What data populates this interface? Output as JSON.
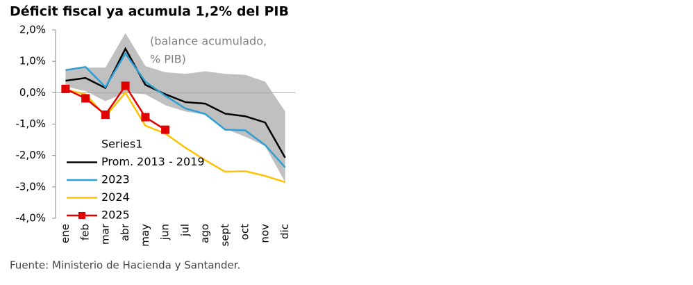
{
  "chart_data": {
    "type": "line",
    "title": "Déficit fiscal ya acumula 1,2% del PIB",
    "annotation": [
      "(balance acumulado,",
      "% PIB)"
    ],
    "source": "Fuente: Ministerio de Hacienda y Santander.",
    "categories": [
      "ene",
      "feb",
      "mar",
      "abr",
      "may",
      "jun",
      "jul",
      "ago",
      "sept",
      "oct",
      "nov",
      "dic"
    ],
    "band": {
      "name": "Series1",
      "color": "#c0c0c0",
      "high": [
        0.73,
        0.8,
        0.8,
        1.9,
        0.85,
        0.65,
        0.6,
        0.68,
        0.6,
        0.57,
        0.35,
        -0.6
      ],
      "low": [
        0.2,
        0.05,
        -0.27,
        0.0,
        -0.05,
        -0.4,
        -0.6,
        -0.7,
        -1.15,
        -1.4,
        -1.7,
        -2.85
      ]
    },
    "series": [
      {
        "name": "Prom. 2013 - 2019",
        "color": "#000000",
        "values": [
          0.38,
          0.47,
          0.15,
          1.4,
          0.25,
          -0.05,
          -0.3,
          -0.35,
          -0.67,
          -0.75,
          -0.95,
          -2.07
        ]
      },
      {
        "name": "2023",
        "color": "#2e9fd4",
        "values": [
          0.72,
          0.82,
          0.18,
          1.25,
          0.35,
          -0.1,
          -0.5,
          -0.68,
          -1.18,
          -1.2,
          -1.67,
          -2.38
        ]
      },
      {
        "name": "2024",
        "color": "#ffc000",
        "values": [
          0.1,
          -0.05,
          -0.75,
          0.0,
          -1.05,
          -1.3,
          -1.75,
          -2.15,
          -2.52,
          -2.5,
          -2.65,
          -2.85
        ]
      },
      {
        "name": "2025",
        "color": "#e00000",
        "marker": "square",
        "values": [
          0.12,
          -0.18,
          -0.7,
          0.22,
          -0.78,
          -1.18,
          null,
          null,
          null,
          null,
          null,
          null
        ]
      }
    ],
    "ylim": [
      -4,
      2
    ],
    "yticks": [
      {
        "value": 2,
        "label": "2,0%"
      },
      {
        "value": 1,
        "label": "1,0%"
      },
      {
        "value": 0,
        "label": "0,0%"
      },
      {
        "value": -1,
        "label": "-1,0%"
      },
      {
        "value": -2,
        "label": "-2,0%"
      },
      {
        "value": -3,
        "label": "-3,0%"
      },
      {
        "value": -4,
        "label": "-4,0%"
      }
    ]
  }
}
